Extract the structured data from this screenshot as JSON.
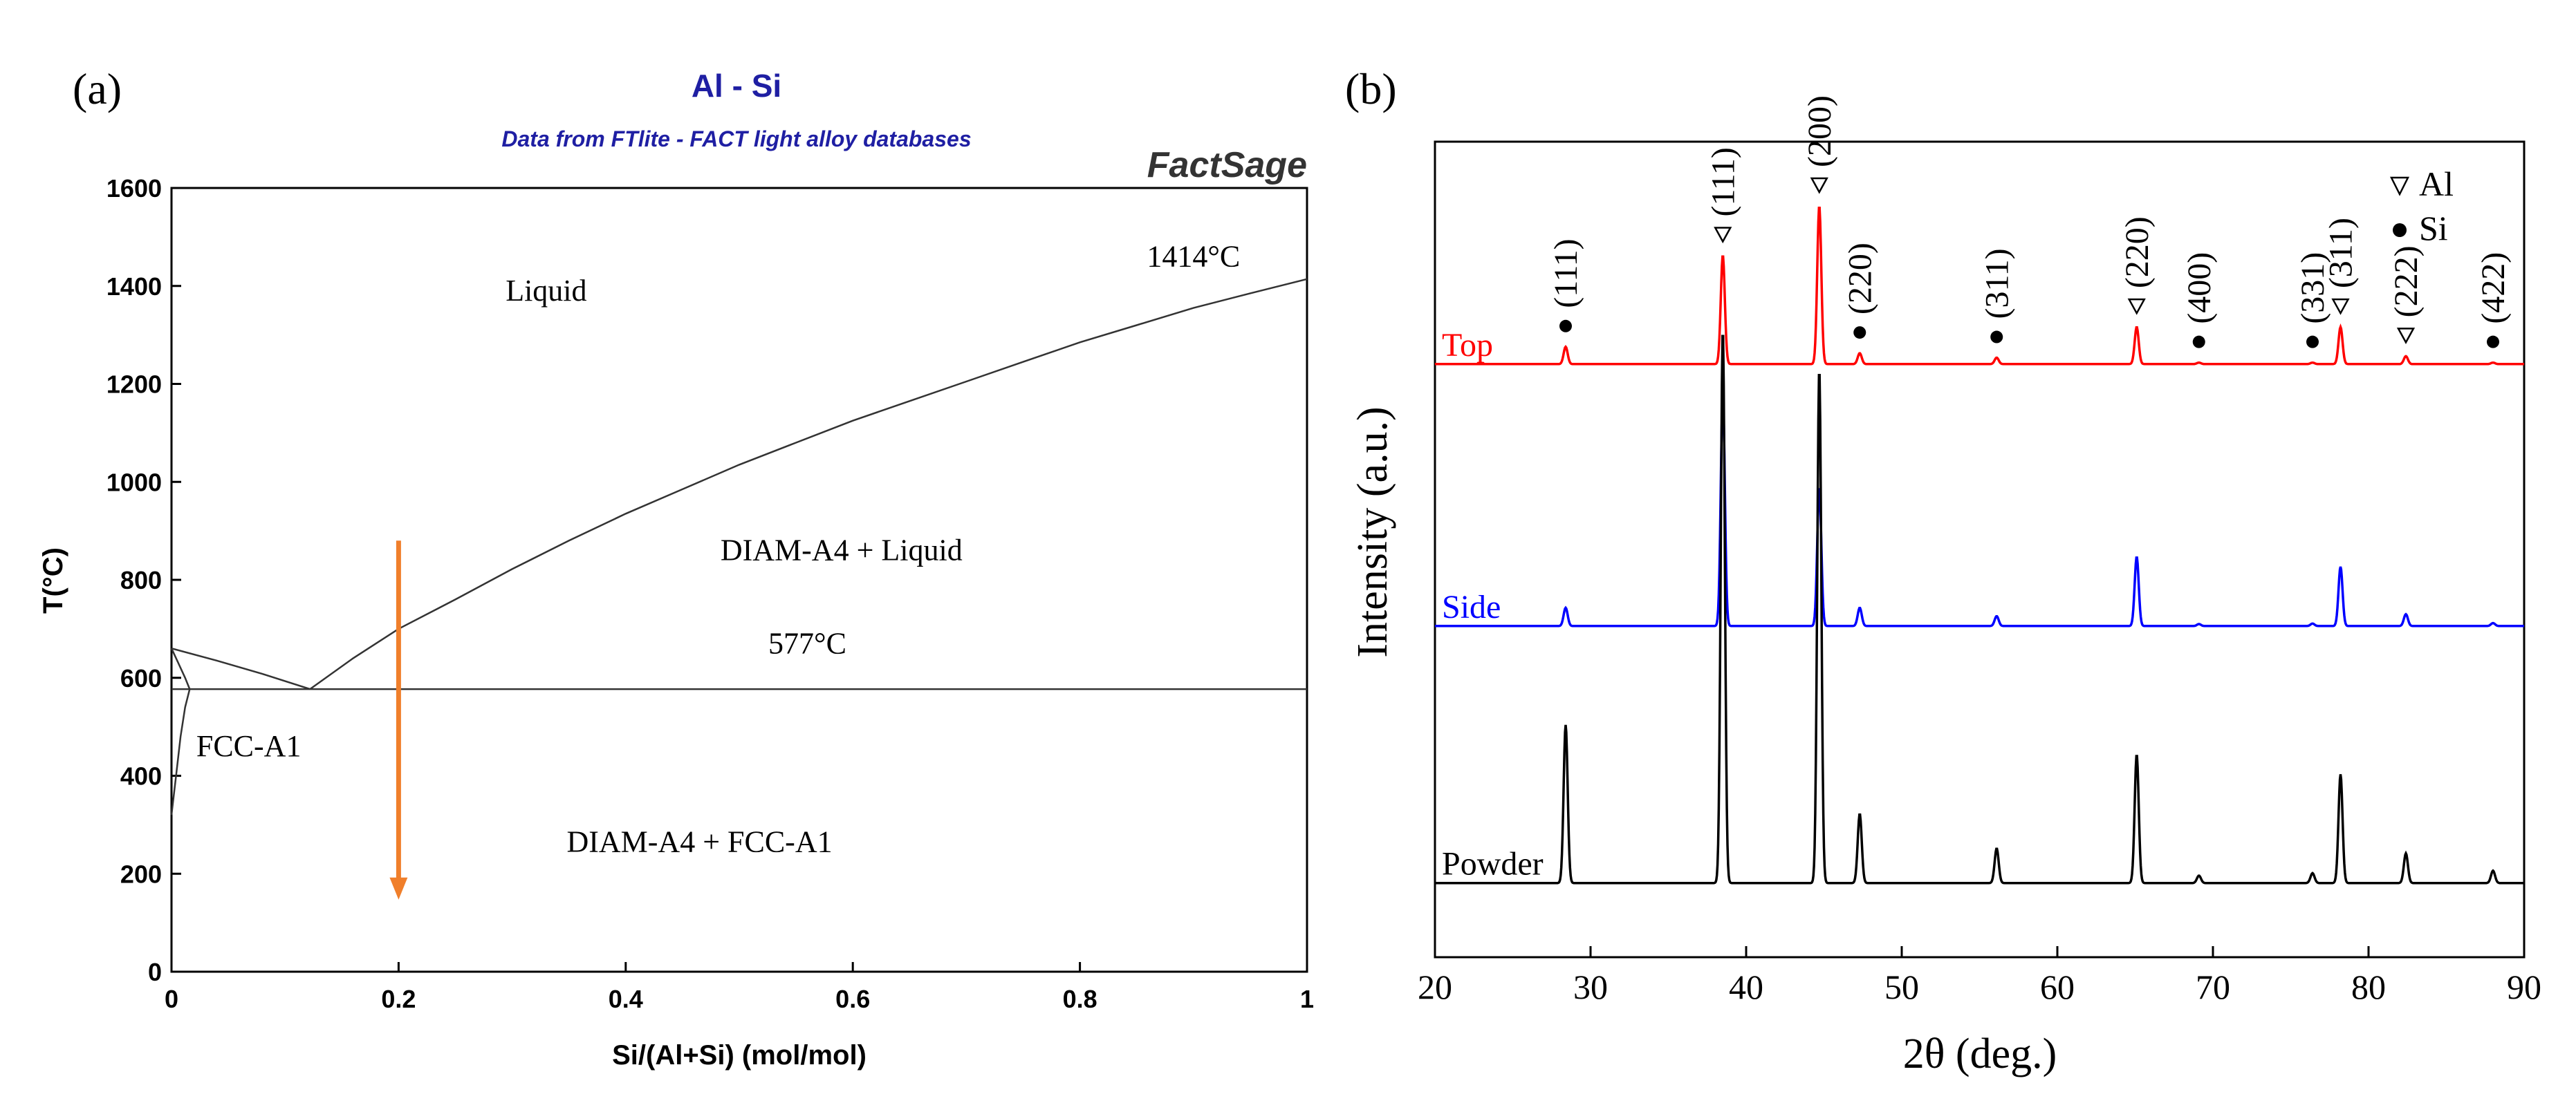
{
  "chart_data": [
    {
      "panel_label": "(a)",
      "type": "line",
      "title": "Al - Si",
      "subtitle": "Data from FTlite - FACT light alloy databases",
      "software": "FactSage",
      "xlabel": "Si/(Al+Si) (mol/mol)",
      "ylabel": "T(°C)",
      "xlim": [
        0,
        1
      ],
      "ylim": [
        0,
        1600
      ],
      "xticks": [
        0,
        0.2,
        0.4,
        0.6,
        0.8,
        1
      ],
      "xtick_labels": [
        "0",
        "0.2",
        "0.4",
        "0.6",
        "0.8",
        "1"
      ],
      "yticks": [
        0,
        200,
        400,
        600,
        800,
        1000,
        1200,
        1400,
        1600
      ],
      "ytick_labels": [
        "0",
        "200",
        "400",
        "600",
        "800",
        "1000",
        "1200",
        "1400",
        "1600"
      ],
      "series": [
        {
          "name": "Liquidus (Si side)",
          "x": [
            0.122,
            0.16,
            0.2,
            0.25,
            0.3,
            0.35,
            0.4,
            0.45,
            0.5,
            0.55,
            0.6,
            0.65,
            0.7,
            0.75,
            0.8,
            0.85,
            0.9,
            0.95,
            1.0
          ],
          "y": [
            577,
            640,
            700,
            760,
            822,
            880,
            935,
            985,
            1035,
            1080,
            1125,
            1165,
            1205,
            1245,
            1285,
            1320,
            1355,
            1385,
            1414
          ]
        },
        {
          "name": "Liquidus (Al side)",
          "x": [
            0.0,
            0.04,
            0.08,
            0.122
          ],
          "y": [
            660,
            635,
            608,
            577
          ]
        },
        {
          "name": "Eutectic line",
          "x": [
            0.0,
            1.0
          ],
          "y": [
            577,
            577
          ]
        },
        {
          "name": "Solidus",
          "x": [
            0.0,
            0.006,
            0.012,
            0.016
          ],
          "y": [
            660,
            630,
            600,
            577
          ]
        },
        {
          "name": "Solvus",
          "x": [
            0.016,
            0.012,
            0.008,
            0.004,
            0.0
          ],
          "y": [
            577,
            540,
            480,
            400,
            320
          ]
        }
      ],
      "annotations": [
        {
          "text": "Liquid",
          "x": 0.33,
          "y": 1370
        },
        {
          "text": "1414°C",
          "x": 0.9,
          "y": 1440
        },
        {
          "text": "DIAM-A4 + Liquid",
          "x": 0.59,
          "y": 840
        },
        {
          "text": "577°C",
          "x": 0.56,
          "y": 650
        },
        {
          "text": "FCC-A1",
          "x": 0.068,
          "y": 440
        },
        {
          "text": "DIAM-A4 + FCC-A1",
          "x": 0.465,
          "y": 245
        }
      ],
      "arrow": {
        "x": 0.2,
        "y_from": 880,
        "y_to": 150,
        "color": "#f07f2b"
      }
    },
    {
      "panel_label": "(b)",
      "type": "line",
      "xlabel": "2θ (deg.)",
      "ylabel": "Intensity (a.u.)",
      "xlim": [
        20,
        90
      ],
      "ylim": [
        -15,
        150
      ],
      "xticks": [
        20,
        30,
        40,
        50,
        60,
        70,
        80,
        90
      ],
      "xtick_labels": [
        "20",
        "30",
        "40",
        "50",
        "60",
        "70",
        "80",
        "90"
      ],
      "series": [
        {
          "name": "Top",
          "color": "#ff0000",
          "baseline": 105,
          "peaks": [
            [
              28.4,
              3.5
            ],
            [
              38.5,
              22
            ],
            [
              44.7,
              32
            ],
            [
              47.3,
              2.2
            ],
            [
              56.1,
              1.3
            ],
            [
              65.1,
              7.5
            ],
            [
              69.1,
              0.3
            ],
            [
              76.4,
              0.3
            ],
            [
              78.2,
              7.5
            ],
            [
              82.4,
              1.6
            ],
            [
              88.0,
              0.3
            ]
          ]
        },
        {
          "name": "Side",
          "color": "#0000ff",
          "baseline": 52,
          "peaks": [
            [
              28.4,
              3.7
            ],
            [
              38.5,
              47
            ],
            [
              44.7,
              28
            ],
            [
              47.3,
              3.7
            ],
            [
              56.1,
              2.0
            ],
            [
              65.1,
              14
            ],
            [
              69.1,
              0.4
            ],
            [
              76.4,
              0.5
            ],
            [
              78.2,
              12
            ],
            [
              82.4,
              2.4
            ],
            [
              88.0,
              0.6
            ]
          ]
        },
        {
          "name": "Powder",
          "color": "#000000",
          "baseline": 0,
          "peaks": [
            [
              28.4,
              32
            ],
            [
              38.5,
              112
            ],
            [
              44.7,
              104
            ],
            [
              47.3,
              14
            ],
            [
              56.1,
              7
            ],
            [
              65.1,
              26
            ],
            [
              69.1,
              1.5
            ],
            [
              76.4,
              2
            ],
            [
              78.2,
              22
            ],
            [
              82.4,
              6
            ],
            [
              88.0,
              2.5
            ]
          ]
        }
      ],
      "annotations": [
        {
          "text": "(111)",
          "phase": "Si",
          "x": 28.4
        },
        {
          "text": "(111)",
          "phase": "Al",
          "x": 38.5
        },
        {
          "text": "(200)",
          "phase": "Al",
          "x": 44.7
        },
        {
          "text": "(220)",
          "phase": "Si",
          "x": 47.3
        },
        {
          "text": "(311)",
          "phase": "Si",
          "x": 56.1
        },
        {
          "text": "(220)",
          "phase": "Al",
          "x": 65.1
        },
        {
          "text": "(400)",
          "phase": "Si",
          "x": 69.1
        },
        {
          "text": "(331)",
          "phase": "Si",
          "x": 76.4
        },
        {
          "text": "(311)",
          "phase": "Al",
          "x": 78.2
        },
        {
          "text": "(222)",
          "phase": "Al",
          "x": 82.4
        },
        {
          "text": "(422)",
          "phase": "Si",
          "x": 88.0
        }
      ],
      "legend": [
        {
          "symbol": "▽",
          "label": "Al"
        },
        {
          "symbol": "●",
          "label": "Si"
        }
      ]
    }
  ]
}
